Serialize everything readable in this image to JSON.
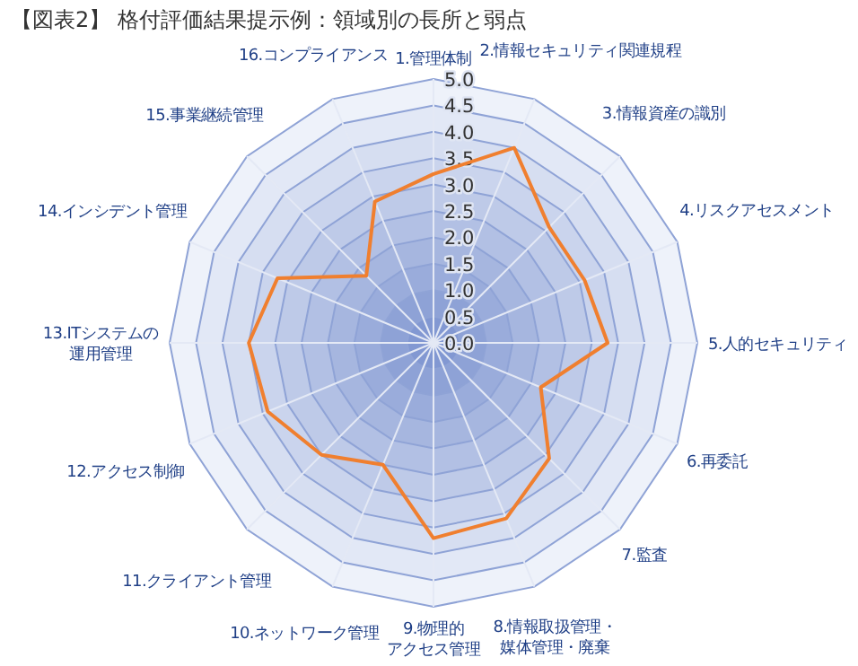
{
  "chart_data": {
    "type": "radar",
    "title": "【図表2】 格付評価結果提示例：領域別の長所と弱点",
    "categories": [
      "1.管理体制",
      "2.情報セキュリティ関連規程",
      "3.情報資産の識別",
      "4.リスクアセスメント",
      "5.人的セキュリティ",
      "6.再委託",
      "7.監査",
      "8.情報取扱管理・媒体管理・廃棄",
      "9.物理的アクセス管理",
      "10.ネットワーク管理",
      "11.クライアント管理",
      "12.アクセス制御",
      "13.ITシステムの運用管理",
      "14.インシデント管理",
      "15.事業継続管理",
      "16.コンプライアンス"
    ],
    "series": [
      {
        "color": "#f07f2f",
        "values": [
          3.2,
          4.0,
          3.1,
          3.1,
          3.3,
          2.2,
          3.1,
          3.6,
          3.7,
          2.5,
          3.0,
          3.4,
          3.5,
          3.2,
          1.8,
          2.9
        ]
      }
    ],
    "ylim": [
      0,
      5
    ],
    "yticks": [
      {
        "value": 0,
        "label": "0.0"
      },
      {
        "value": 0.5,
        "label": "0.5"
      },
      {
        "value": 1,
        "label": "1.0"
      },
      {
        "value": 1.5,
        "label": "1.5"
      },
      {
        "value": 2,
        "label": "2.0"
      },
      {
        "value": 2.5,
        "label": "2.5"
      },
      {
        "value": 3,
        "label": "3.0"
      },
      {
        "value": 3.5,
        "label": "3.5"
      },
      {
        "value": 4,
        "label": "4.0"
      },
      {
        "value": 4.5,
        "label": "4.5"
      },
      {
        "value": 5,
        "label": "5.0"
      }
    ],
    "grid": true,
    "marker": "none",
    "line_style": "solid"
  }
}
